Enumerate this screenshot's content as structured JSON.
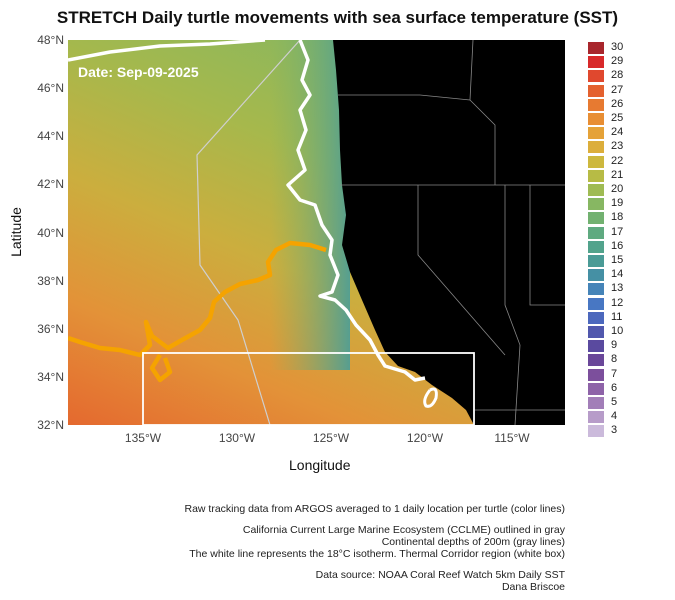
{
  "title": "STRETCH Daily turtle movements with sea surface temperature (SST)",
  "date_label": "Date: Sep-09-2025",
  "axes": {
    "xlabel": "Longitude",
    "ylabel": "Latitude",
    "x_ticks": [
      "135°W",
      "130°W",
      "125°W",
      "120°W",
      "115°W"
    ],
    "y_ticks": [
      "48°N",
      "46°N",
      "44°N",
      "42°N",
      "40°N",
      "38°N",
      "36°N",
      "34°N",
      "32°N"
    ]
  },
  "legend": [
    {
      "label": "30",
      "color": "#a8262c"
    },
    {
      "label": "29",
      "color": "#d8292a"
    },
    {
      "label": "28",
      "color": "#e0482e"
    },
    {
      "label": "27",
      "color": "#e4612f"
    },
    {
      "label": "26",
      "color": "#e77a31"
    },
    {
      "label": "25",
      "color": "#e88e34"
    },
    {
      "label": "24",
      "color": "#e5a238"
    },
    {
      "label": "23",
      "color": "#dcae3b"
    },
    {
      "label": "22",
      "color": "#cdb83e"
    },
    {
      "label": "21",
      "color": "#b7bb45"
    },
    {
      "label": "20",
      "color": "#9fbb53"
    },
    {
      "label": "19",
      "color": "#87b762"
    },
    {
      "label": "18",
      "color": "#72b170"
    },
    {
      "label": "17",
      "color": "#5faa80"
    },
    {
      "label": "16",
      "color": "#52a38c"
    },
    {
      "label": "15",
      "color": "#4a9b96"
    },
    {
      "label": "14",
      "color": "#4590a4"
    },
    {
      "label": "13",
      "color": "#4584b8"
    },
    {
      "label": "12",
      "color": "#4877c3"
    },
    {
      "label": "11",
      "color": "#4c68bd"
    },
    {
      "label": "10",
      "color": "#5158ad"
    },
    {
      "label": "9",
      "color": "#5a4a9f"
    },
    {
      "label": "8",
      "color": "#6a4799"
    },
    {
      "label": "7",
      "color": "#7c4f9c"
    },
    {
      "label": "6",
      "color": "#8e63a8"
    },
    {
      "label": "5",
      "color": "#a27eb8"
    },
    {
      "label": "4",
      "color": "#b79cc9"
    },
    {
      "label": "3",
      "color": "#cbbadb"
    }
  ],
  "colors": {
    "land": "#000000",
    "track": "#f5a300",
    "isotherm": "#ffffff",
    "cclme": "#bbbbbb"
  },
  "caption": [
    "Raw tracking data from ARGOS averaged to 1 daily location per turtle (color lines)",
    "California Current Large Marine Ecosystem (CCLME) outlined in gray",
    "Continental depths of 200m (gray lines)",
    "The white line represents the 18°C isotherm. Thermal Corridor region (white box)",
    "Data source: NOAA Coral Reef Watch 5km Daily SST",
    "Dana Briscoe"
  ]
}
